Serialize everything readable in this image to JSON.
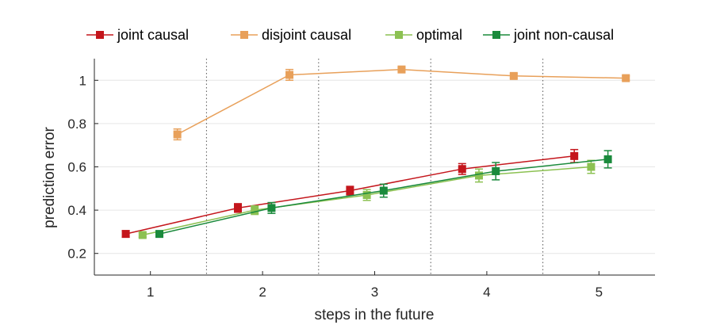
{
  "chart_data": {
    "type": "line",
    "xlabel": "steps in the future",
    "ylabel": "prediction error",
    "x_ticks": [
      "1",
      "2",
      "3",
      "4",
      "5"
    ],
    "y_ticks": [
      "0.2",
      "0.4",
      "0.6",
      "0.8",
      "1"
    ],
    "xlim": [
      0.5,
      5.5
    ],
    "ylim": [
      0.1,
      1.1
    ],
    "grid": "horizontal",
    "step_separators": [
      1.5,
      2.5,
      3.5,
      4.5
    ],
    "legend_position": "top",
    "series": [
      {
        "name": "joint causal",
        "color": "#c4161c",
        "marker": "square",
        "x": [
          0.78,
          1.78,
          2.78,
          3.78,
          4.78
        ],
        "values": [
          0.29,
          0.41,
          0.49,
          0.59,
          0.65
        ],
        "errors": [
          0.015,
          0.02,
          0.02,
          0.025,
          0.03
        ]
      },
      {
        "name": "disjoint causal",
        "color": "#e8a05a",
        "marker": "square",
        "x": [
          1.24,
          2.24,
          3.24,
          4.24,
          5.24
        ],
        "values": [
          0.75,
          1.025,
          1.05,
          1.02,
          1.01
        ],
        "errors": [
          0.025,
          0.025,
          0.01,
          0.01,
          0.01
        ]
      },
      {
        "name": "optimal",
        "color": "#8cc152",
        "marker": "square",
        "x": [
          0.93,
          1.93,
          2.93,
          3.93,
          4.93
        ],
        "values": [
          0.285,
          0.4,
          0.47,
          0.56,
          0.6
        ],
        "errors": [
          0.01,
          0.02,
          0.025,
          0.03,
          0.03
        ]
      },
      {
        "name": "joint non-causal",
        "color": "#1a8a3c",
        "marker": "square",
        "x": [
          1.08,
          2.08,
          3.08,
          4.08,
          5.08
        ],
        "values": [
          0.29,
          0.41,
          0.49,
          0.58,
          0.635
        ],
        "errors": [
          0.01,
          0.025,
          0.03,
          0.04,
          0.04
        ]
      }
    ]
  }
}
